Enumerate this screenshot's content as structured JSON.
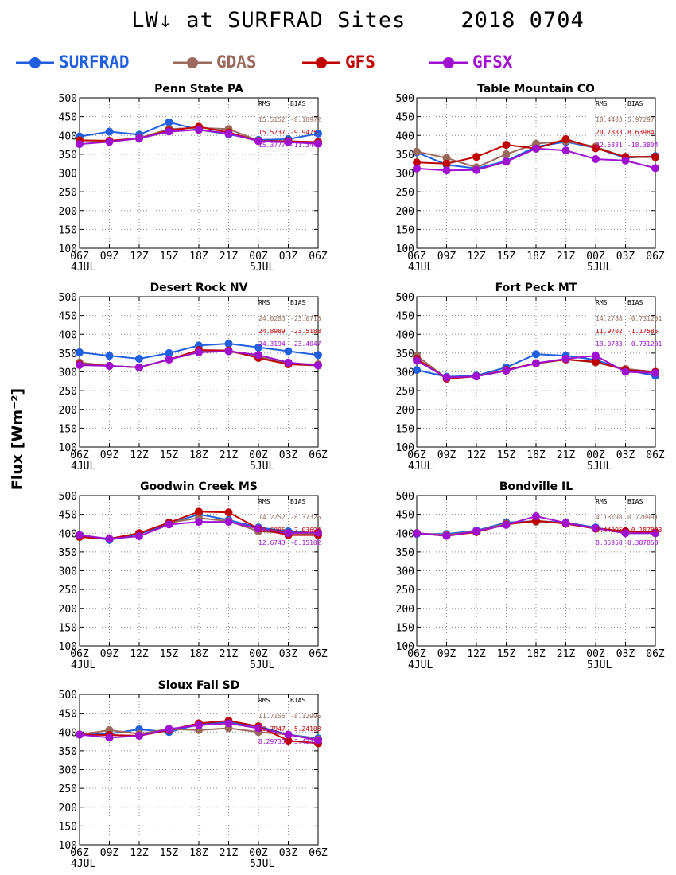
{
  "title": "LW↓ at SURFRAD Sites    2018 0704",
  "ylabel": "Flux [Wm⁻²]",
  "legend": [
    {
      "name": "SURFRAD",
      "color": "#2060e0"
    },
    {
      "name": "GDAS",
      "color": "#9a6a5c"
    },
    {
      "name": "GFS",
      "color": "#c00000"
    },
    {
      "name": "GFSX",
      "color": "#a010d0"
    }
  ],
  "x_ticks": [
    "06Z",
    "09Z",
    "12Z",
    "15Z",
    "18Z",
    "21Z",
    "00Z",
    "03Z",
    "06Z"
  ],
  "date_labels": [
    {
      "index": 0,
      "text": "4JUL"
    },
    {
      "index": 6,
      "text": "5JUL"
    }
  ],
  "stats_headers": [
    "RMS",
    "BIAS"
  ],
  "chart_data": [
    {
      "type": "line",
      "title": "Penn State PA",
      "categories": [
        "06Z",
        "09Z",
        "12Z",
        "15Z",
        "18Z",
        "21Z",
        "00Z",
        "03Z",
        "06Z"
      ],
      "ylim": [
        100,
        500
      ],
      "yticks": [
        100,
        150,
        200,
        250,
        300,
        350,
        400,
        450,
        500
      ],
      "grid": true,
      "series": [
        {
          "name": "SURFRAD",
          "values": [
            397,
            410,
            402,
            435,
            415,
            403,
            388,
            390,
            405
          ]
        },
        {
          "name": "GDAS",
          "values": [
            387,
            385,
            393,
            417,
            420,
            417,
            386,
            383,
            383
          ]
        },
        {
          "name": "GFS",
          "values": [
            387,
            386,
            392,
            413,
            423,
            408,
            385,
            385,
            382
          ]
        },
        {
          "name": "GFSX",
          "values": [
            377,
            383,
            392,
            410,
            415,
            405,
            385,
            382,
            378
          ]
        }
      ],
      "stats": [
        {
          "model": "GDAS",
          "rms": "15.5152",
          "bias": "-8.18972"
        },
        {
          "model": "GFS",
          "rms": "15.5237",
          "bias": "-9.9475"
        },
        {
          "model": "GFSX",
          "rms": "15.3777",
          "bias": "-11.3443"
        }
      ]
    },
    {
      "type": "line",
      "title": "Table Mountain CO",
      "categories": [
        "06Z",
        "09Z",
        "12Z",
        "15Z",
        "18Z",
        "21Z",
        "00Z",
        "03Z",
        "06Z"
      ],
      "ylim": [
        100,
        500
      ],
      "yticks": [
        100,
        150,
        200,
        250,
        300,
        350,
        400,
        450,
        500
      ],
      "grid": true,
      "series": [
        {
          "name": "SURFRAD",
          "values": [
            355,
            322,
            312,
            332,
            370,
            383,
            367,
            340,
            345
          ]
        },
        {
          "name": "GDAS",
          "values": [
            357,
            340,
            315,
            350,
            378,
            385,
            370,
            342,
            342
          ]
        },
        {
          "name": "GFS",
          "values": [
            328,
            325,
            343,
            375,
            365,
            390,
            366,
            343,
            343
          ]
        },
        {
          "name": "GFSX",
          "values": [
            312,
            307,
            308,
            330,
            365,
            360,
            337,
            333,
            313
          ]
        }
      ],
      "stats": [
        {
          "model": "GDAS",
          "rms": "10.4403",
          "bias": "5.97297"
        },
        {
          "model": "GFS",
          "rms": "20.7883",
          "bias": "8.63984"
        },
        {
          "model": "GFSX",
          "rms": "22.6881",
          "bias": "-18.3804"
        }
      ]
    },
    {
      "type": "line",
      "title": "Desert Rock NV",
      "categories": [
        "06Z",
        "09Z",
        "12Z",
        "15Z",
        "18Z",
        "21Z",
        "00Z",
        "03Z",
        "06Z"
      ],
      "ylim": [
        100,
        500
      ],
      "yticks": [
        100,
        150,
        200,
        250,
        300,
        350,
        400,
        450,
        500
      ],
      "grid": true,
      "series": [
        {
          "name": "SURFRAD",
          "values": [
            352,
            343,
            335,
            350,
            370,
            375,
            365,
            355,
            345
          ]
        },
        {
          "name": "GDAS",
          "values": [
            325,
            316,
            312,
            333,
            355,
            355,
            340,
            322,
            320
          ]
        },
        {
          "name": "GFS",
          "values": [
            320,
            316,
            312,
            333,
            358,
            357,
            337,
            320,
            317
          ]
        },
        {
          "name": "GFSX",
          "values": [
            318,
            316,
            312,
            333,
            352,
            355,
            345,
            325,
            317
          ]
        }
      ],
      "stats": [
        {
          "model": "GDAS",
          "rms": "24.0283",
          "bias": "-23.0718"
        },
        {
          "model": "GFS",
          "rms": "24.8989",
          "bias": "-23.5183"
        },
        {
          "model": "GFSX",
          "rms": "24.3194",
          "bias": "-23.4047"
        }
      ]
    },
    {
      "type": "line",
      "title": "Fort Peck MT",
      "categories": [
        "06Z",
        "09Z",
        "12Z",
        "15Z",
        "18Z",
        "21Z",
        "00Z",
        "03Z",
        "06Z"
      ],
      "ylim": [
        100,
        500
      ],
      "yticks": [
        100,
        150,
        200,
        250,
        300,
        350,
        400,
        450,
        500
      ],
      "grid": true,
      "series": [
        {
          "name": "SURFRAD",
          "values": [
            305,
            287,
            290,
            312,
            347,
            343,
            332,
            305,
            290
          ]
        },
        {
          "name": "GDAS",
          "values": [
            343,
            283,
            288,
            305,
            322,
            333,
            325,
            308,
            300
          ]
        },
        {
          "name": "GFS",
          "values": [
            335,
            282,
            288,
            305,
            323,
            333,
            327,
            305,
            300
          ]
        },
        {
          "name": "GFSX",
          "values": [
            330,
            285,
            288,
            303,
            323,
            335,
            343,
            300,
            297
          ]
        }
      ],
      "stats": [
        {
          "model": "GDAS",
          "rms": "14.2788",
          "bias": "-0.731201"
        },
        {
          "model": "GFS",
          "rms": "11.9702",
          "bias": "-1.17585"
        },
        {
          "model": "GFSX",
          "rms": "13.0783",
          "bias": "-0.731201"
        }
      ]
    },
    {
      "type": "line",
      "title": "Goodwin Creek MS",
      "categories": [
        "06Z",
        "09Z",
        "12Z",
        "15Z",
        "18Z",
        "21Z",
        "00Z",
        "03Z",
        "06Z"
      ],
      "ylim": [
        100,
        500
      ],
      "yticks": [
        100,
        150,
        200,
        250,
        300,
        350,
        400,
        450,
        500
      ],
      "grid": true,
      "series": [
        {
          "name": "SURFRAD",
          "values": [
            395,
            382,
            398,
            425,
            450,
            435,
            415,
            405,
            400
          ]
        },
        {
          "name": "GDAS",
          "values": [
            390,
            385,
            400,
            428,
            440,
            432,
            405,
            400,
            398
          ]
        },
        {
          "name": "GFS",
          "values": [
            390,
            385,
            400,
            428,
            457,
            455,
            412,
            395,
            395
          ]
        },
        {
          "name": "GFSX",
          "values": [
            395,
            385,
            392,
            423,
            430,
            430,
            412,
            400,
            402
          ]
        }
      ],
      "stats": [
        {
          "model": "GDAS",
          "rms": "14.2252",
          "bias": "-8.37325"
        },
        {
          "model": "GFS",
          "rms": "12.6085",
          "bias": "-2.03694"
        },
        {
          "model": "GFSX",
          "rms": "12.6743",
          "bias": "-8.15102"
        }
      ]
    },
    {
      "type": "line",
      "title": "Bondville IL",
      "categories": [
        "06Z",
        "09Z",
        "12Z",
        "15Z",
        "18Z",
        "21Z",
        "00Z",
        "03Z",
        "06Z"
      ],
      "ylim": [
        100,
        500
      ],
      "yticks": [
        100,
        150,
        200,
        250,
        300,
        350,
        400,
        450,
        500
      ],
      "grid": true,
      "series": [
        {
          "name": "SURFRAD",
          "values": [
            398,
            398,
            407,
            428,
            432,
            428,
            415,
            400,
            400
          ]
        },
        {
          "name": "GDAS",
          "values": [
            400,
            395,
            405,
            425,
            430,
            427,
            413,
            405,
            400
          ]
        },
        {
          "name": "GFS",
          "values": [
            400,
            393,
            403,
            423,
            433,
            425,
            412,
            405,
            402
          ]
        },
        {
          "name": "GFSX",
          "values": [
            400,
            393,
            405,
            422,
            445,
            427,
            413,
            400,
            400
          ]
        }
      ],
      "stats": [
        {
          "model": "GDAS",
          "rms": "4.18198",
          "bias": "0.720991"
        },
        {
          "model": "GFS",
          "rms": "4.44095",
          "bias": "-0.187838"
        },
        {
          "model": "GFSX",
          "rms": "8.35958",
          "bias": "0.387858"
        }
      ]
    },
    {
      "type": "line",
      "title": "Sioux Fall SD",
      "categories": [
        "06Z",
        "09Z",
        "12Z",
        "15Z",
        "18Z",
        "21Z",
        "00Z",
        "03Z",
        "06Z"
      ],
      "ylim": [
        100,
        500
      ],
      "yticks": [
        100,
        150,
        200,
        250,
        300,
        350,
        400,
        450,
        500
      ],
      "grid": true,
      "series": [
        {
          "name": "SURFRAD",
          "values": [
            393,
            395,
            407,
            400,
            420,
            425,
            415,
            393,
            383
          ]
        },
        {
          "name": "GDAS",
          "values": [
            393,
            405,
            395,
            408,
            405,
            410,
            400,
            393,
            380
          ]
        },
        {
          "name": "GFS",
          "values": [
            393,
            392,
            390,
            405,
            423,
            430,
            415,
            377,
            370
          ]
        },
        {
          "name": "GFSX",
          "values": [
            393,
            385,
            390,
            408,
            418,
            423,
            410,
            393,
            378
          ]
        }
      ],
      "stats": [
        {
          "model": "GDAS",
          "rms": "11.7155",
          "bias": "-8.12995"
        },
        {
          "model": "GFS",
          "rms": "13.7947",
          "bias": "-5.24103"
        },
        {
          "model": "GFSX",
          "rms": "8.29733",
          "bias": "-3.43476"
        }
      ]
    }
  ]
}
